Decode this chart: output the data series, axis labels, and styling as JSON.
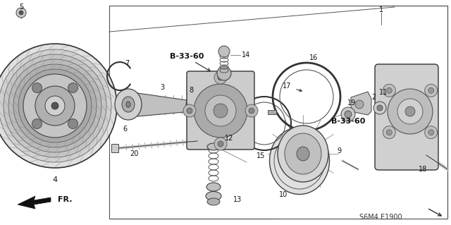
{
  "bg_color": "#ffffff",
  "diagram_code": "S6M4 E1900",
  "fr_label": "FR.",
  "b3360_label": "B-33-60"
}
